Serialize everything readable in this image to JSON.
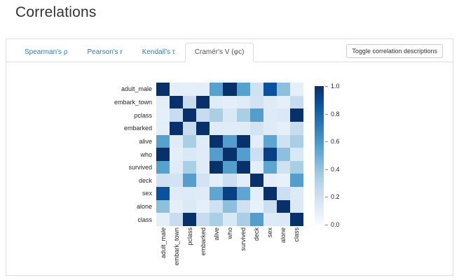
{
  "header": {
    "title": "Correlations"
  },
  "tabs": [
    {
      "label": "Spearman's ρ"
    },
    {
      "label": "Pearson's r"
    },
    {
      "label": "Kendall's τ"
    },
    {
      "label": "Cramér's V (φc)"
    }
  ],
  "active_tab": "Cramér's V (φc)",
  "toolbar": {
    "toggle_descriptions_label": "Toggle correlation descriptions"
  },
  "chart_data": {
    "type": "heatmap",
    "colormap": "Blues",
    "legend_position": "right",
    "vmin": 0.0,
    "vmax": 1.0,
    "colorbar_ticks": [
      1.0,
      0.8,
      0.6,
      0.4,
      0.2,
      0.0
    ],
    "variables": [
      "adult_male",
      "embark_town",
      "pclass",
      "embarked",
      "alive",
      "who",
      "survived",
      "deck",
      "sex",
      "alone",
      "class"
    ],
    "matrix": [
      [
        1.0,
        0.1,
        0.09,
        0.1,
        0.56,
        1.0,
        0.56,
        0.2,
        0.87,
        0.42,
        0.09
      ],
      [
        0.1,
        1.0,
        0.24,
        1.0,
        0.12,
        0.1,
        0.12,
        0.19,
        0.12,
        0.09,
        0.24
      ],
      [
        0.09,
        0.24,
        1.0,
        0.24,
        0.34,
        0.15,
        0.34,
        0.57,
        0.13,
        0.14,
        1.0
      ],
      [
        0.1,
        1.0,
        0.24,
        1.0,
        0.12,
        0.12,
        0.12,
        0.19,
        0.12,
        0.09,
        0.24
      ],
      [
        0.56,
        0.12,
        0.34,
        0.12,
        1.0,
        0.57,
        1.0,
        0.1,
        0.54,
        0.2,
        0.34
      ],
      [
        1.0,
        0.1,
        0.15,
        0.12,
        0.57,
        1.0,
        0.57,
        0.22,
        0.94,
        0.42,
        0.15
      ],
      [
        0.56,
        0.12,
        0.34,
        0.12,
        1.0,
        0.57,
        1.0,
        0.1,
        0.54,
        0.2,
        0.34
      ],
      [
        0.2,
        0.19,
        0.57,
        0.19,
        0.1,
        0.22,
        0.1,
        1.0,
        0.1,
        0.08,
        0.57
      ],
      [
        0.87,
        0.12,
        0.13,
        0.12,
        0.54,
        0.94,
        0.54,
        0.1,
        1.0,
        0.22,
        0.13
      ],
      [
        0.42,
        0.09,
        0.14,
        0.09,
        0.2,
        0.42,
        0.2,
        0.08,
        0.22,
        1.0,
        0.14
      ],
      [
        0.09,
        0.24,
        1.0,
        0.24,
        0.34,
        0.15,
        0.34,
        0.57,
        0.13,
        0.14,
        1.0
      ]
    ]
  },
  "colors": {
    "link_blue": "#337ab7",
    "active_tab_text": "#555555",
    "border": "#dddddd",
    "heatmap_low": "#f7fbff",
    "heatmap_high": "#08306b"
  }
}
